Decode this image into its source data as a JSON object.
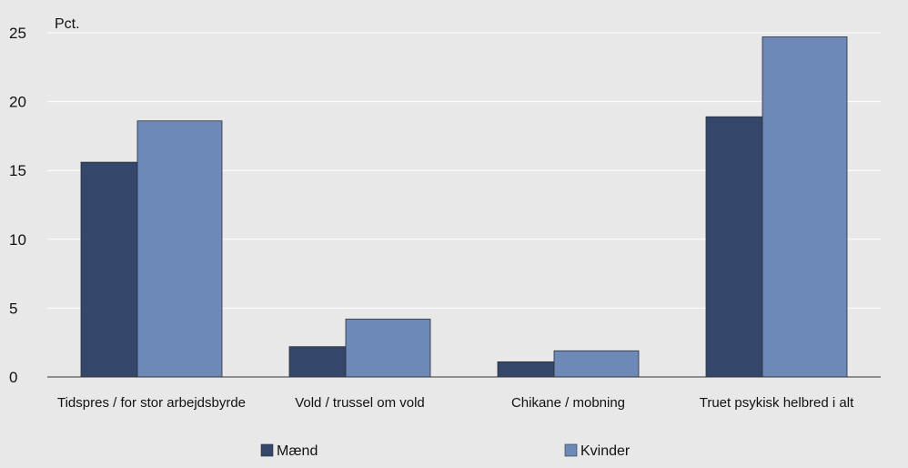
{
  "chart_data": {
    "type": "bar",
    "title": "",
    "ylabel": "Pct.",
    "xlabel": "",
    "ylim": [
      0,
      25
    ],
    "yticks": [
      0,
      5,
      10,
      15,
      20,
      25
    ],
    "grid": true,
    "legend_position": "bottom",
    "categories": [
      "Tidspres / for stor arbejdsbyrde",
      "Vold / trussel om vold",
      "Chikane / mobning",
      "Truet psykisk helbred i alt"
    ],
    "series": [
      {
        "name": "Mænd",
        "color": "#34476b",
        "values": [
          15.6,
          2.2,
          1.1,
          18.9
        ]
      },
      {
        "name": "Kvinder",
        "color": "#6d89b8",
        "values": [
          18.6,
          4.2,
          1.9,
          24.7
        ]
      }
    ]
  },
  "colors": {
    "plot_background": "#e8e8e8",
    "gridline": "#ffffff",
    "bar_stroke": "#2a2f3a"
  }
}
